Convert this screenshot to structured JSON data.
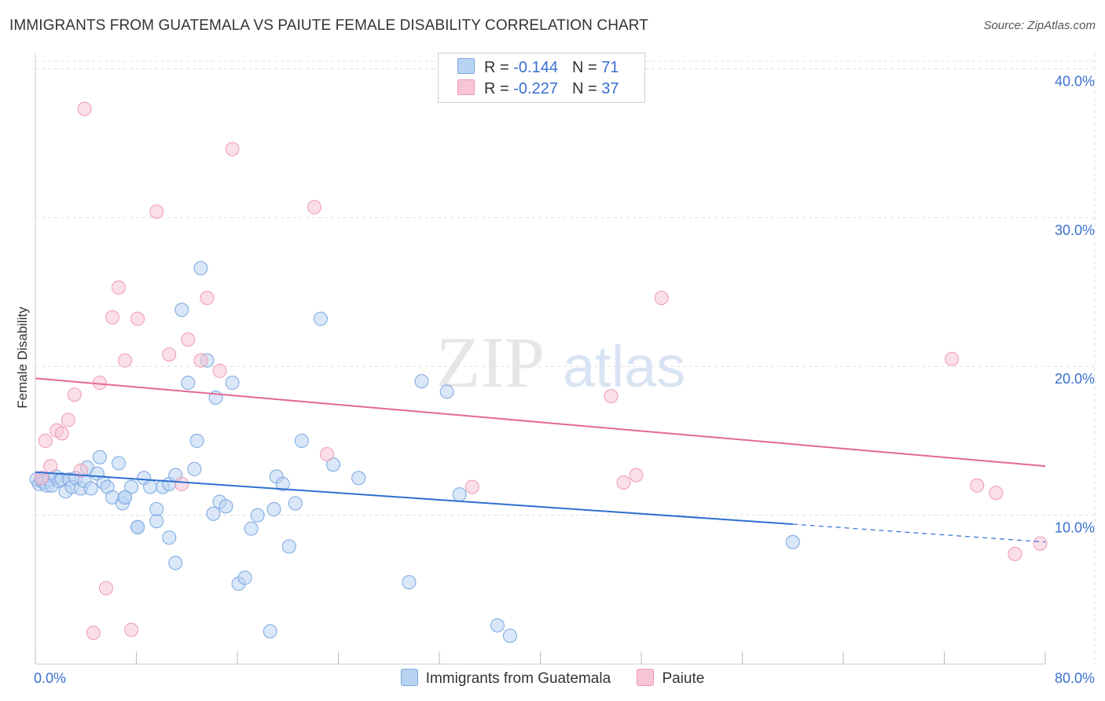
{
  "header": {
    "title": "IMMIGRANTS FROM GUATEMALA VS PAIUTE FEMALE DISABILITY CORRELATION CHART",
    "source": "Source: ZipAtlas.com"
  },
  "watermark": {
    "zip": "ZIP",
    "atlas": "atlas"
  },
  "legend": {
    "rows": [
      {
        "r_label": "R = ",
        "r_value": "-0.144",
        "n_label": "N = ",
        "n_value": "71"
      },
      {
        "r_label": "R = ",
        "r_value": "-0.227",
        "n_label": "N = ",
        "n_value": "37"
      }
    ]
  },
  "bottom_legend": {
    "series1": "Immigrants from Guatemala",
    "series2": "Paiute"
  },
  "colors": {
    "blue_fill": "#b9d3f3",
    "blue_stroke": "#7aa7e0",
    "blue_line": "#2f6fcf",
    "pink_fill": "#f8c5d5",
    "pink_stroke": "#ee9ab5",
    "pink_line": "#e4689a",
    "tick_label": "#3a6fd0",
    "grid": "#dddddd"
  },
  "chart_data": {
    "type": "scatter",
    "title": "IMMIGRANTS FROM GUATEMALA VS PAIUTE FEMALE DISABILITY CORRELATION CHART",
    "xlabel": "",
    "ylabel": "Female Disability",
    "xlim": [
      0,
      80
    ],
    "ylim": [
      0,
      40.5
    ],
    "x_tick_labels": [
      "0.0%",
      "80.0%"
    ],
    "y_ticks": [
      10,
      20,
      30,
      40
    ],
    "y_tick_labels": [
      "10.0%",
      "20.0%",
      "30.0%",
      "40.0%"
    ],
    "series": [
      {
        "name": "Immigrants from Guatemala",
        "r": -0.144,
        "n": 71,
        "trend": {
          "x0": 0,
          "y0": 12.9,
          "x1": 60,
          "y1": 9.4,
          "dash_x1": 80,
          "dash_y1": 8.2
        },
        "points": [
          [
            0.1,
            12.4
          ],
          [
            0.3,
            12.1
          ],
          [
            0.5,
            12.3
          ],
          [
            0.7,
            12.2
          ],
          [
            0.9,
            12.0
          ],
          [
            1.1,
            12.4
          ],
          [
            1.3,
            12.0
          ],
          [
            1.6,
            12.6
          ],
          [
            1.9,
            12.3
          ],
          [
            2.1,
            12.4
          ],
          [
            2.4,
            11.6
          ],
          [
            2.7,
            12.4
          ],
          [
            2.9,
            11.9
          ],
          [
            3.2,
            12.5
          ],
          [
            3.6,
            11.8
          ],
          [
            3.9,
            12.3
          ],
          [
            4.1,
            13.2
          ],
          [
            4.4,
            11.8
          ],
          [
            4.9,
            12.8
          ],
          [
            5.1,
            13.9
          ],
          [
            5.4,
            12.2
          ],
          [
            5.7,
            11.9
          ],
          [
            6.1,
            11.2
          ],
          [
            6.6,
            13.5
          ],
          [
            6.9,
            10.8
          ],
          [
            7.1,
            11.2
          ],
          [
            7.6,
            11.9
          ],
          [
            8.1,
            9.2
          ],
          [
            8.6,
            12.5
          ],
          [
            9.1,
            11.9
          ],
          [
            9.6,
            10.4
          ],
          [
            10.1,
            11.9
          ],
          [
            10.6,
            12.1
          ],
          [
            11.1,
            12.7
          ],
          [
            11.6,
            23.8
          ],
          [
            12.1,
            18.9
          ],
          [
            12.6,
            13.1
          ],
          [
            12.8,
            15.0
          ],
          [
            13.1,
            26.6
          ],
          [
            13.6,
            20.4
          ],
          [
            14.1,
            10.1
          ],
          [
            14.3,
            17.9
          ],
          [
            14.6,
            10.9
          ],
          [
            15.1,
            10.6
          ],
          [
            15.6,
            18.9
          ],
          [
            16.1,
            5.4
          ],
          [
            16.6,
            5.8
          ],
          [
            17.1,
            9.1
          ],
          [
            17.6,
            10.0
          ],
          [
            18.6,
            2.2
          ],
          [
            18.9,
            10.4
          ],
          [
            19.1,
            12.6
          ],
          [
            19.6,
            12.1
          ],
          [
            20.1,
            7.9
          ],
          [
            20.6,
            10.8
          ],
          [
            21.1,
            15.0
          ],
          [
            22.6,
            23.2
          ],
          [
            23.6,
            13.4
          ],
          [
            25.6,
            12.5
          ],
          [
            29.6,
            5.5
          ],
          [
            30.6,
            19.0
          ],
          [
            32.6,
            18.3
          ],
          [
            33.6,
            11.4
          ],
          [
            36.6,
            2.6
          ],
          [
            37.6,
            1.9
          ],
          [
            60.0,
            8.2
          ],
          [
            11.1,
            6.8
          ],
          [
            10.6,
            8.5
          ],
          [
            9.6,
            9.6
          ],
          [
            8.1,
            9.2
          ],
          [
            7.1,
            11.2
          ]
        ]
      },
      {
        "name": "Paiute",
        "r": -0.227,
        "n": 37,
        "trend": {
          "x0": 0,
          "y0": 19.2,
          "x1": 80,
          "y1": 13.3
        },
        "points": [
          [
            0.5,
            12.5
          ],
          [
            0.8,
            15.0
          ],
          [
            1.2,
            13.3
          ],
          [
            1.7,
            15.7
          ],
          [
            2.1,
            15.5
          ],
          [
            2.6,
            16.4
          ],
          [
            3.1,
            18.1
          ],
          [
            3.6,
            13.0
          ],
          [
            3.9,
            37.3
          ],
          [
            4.6,
            2.1
          ],
          [
            5.1,
            18.9
          ],
          [
            5.6,
            5.1
          ],
          [
            6.1,
            23.3
          ],
          [
            6.6,
            25.3
          ],
          [
            7.1,
            20.4
          ],
          [
            7.6,
            2.3
          ],
          [
            8.1,
            23.2
          ],
          [
            9.6,
            30.4
          ],
          [
            10.6,
            20.8
          ],
          [
            11.6,
            12.1
          ],
          [
            12.1,
            21.8
          ],
          [
            13.1,
            20.4
          ],
          [
            13.6,
            24.6
          ],
          [
            14.6,
            19.7
          ],
          [
            15.6,
            34.6
          ],
          [
            22.1,
            30.7
          ],
          [
            23.1,
            14.1
          ],
          [
            34.6,
            11.9
          ],
          [
            45.6,
            18.0
          ],
          [
            46.6,
            12.2
          ],
          [
            47.6,
            12.7
          ],
          [
            49.6,
            24.6
          ],
          [
            72.6,
            20.5
          ],
          [
            74.6,
            12.0
          ],
          [
            76.1,
            11.5
          ],
          [
            77.6,
            7.4
          ],
          [
            79.6,
            8.1
          ]
        ]
      }
    ]
  }
}
